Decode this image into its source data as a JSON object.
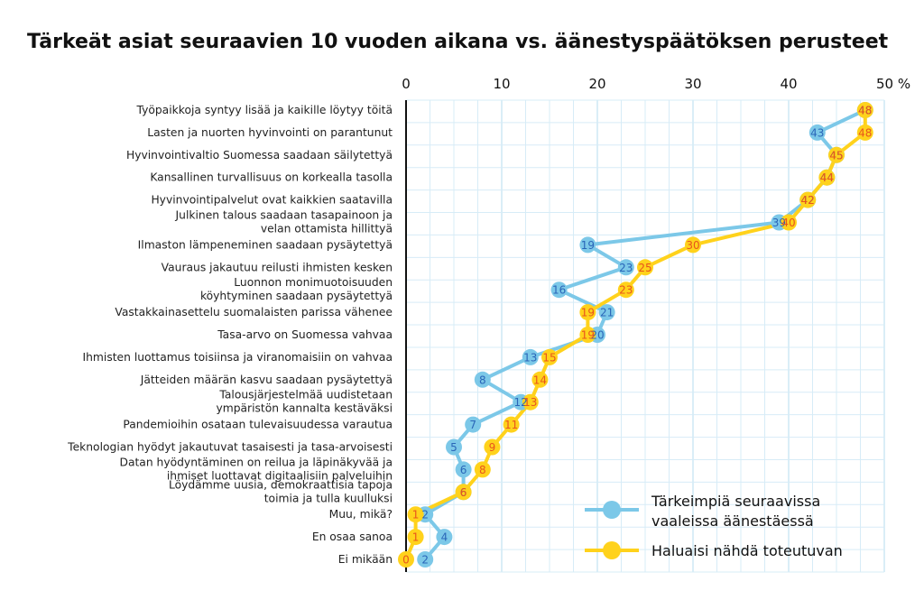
{
  "chart_data": {
    "type": "line",
    "title": "Tärkeät asiat seuraavien 10 vuoden aikana vs. äänestyspäätöksen perusteet",
    "x_unit_label": "%",
    "xlim": [
      0,
      50
    ],
    "x_ticks": [
      0,
      10,
      20,
      30,
      40,
      50
    ],
    "grid": true,
    "legend_placement": "bottom-right",
    "categories": [
      "Työpaikkoja syntyy lisää ja kaikille löytyy töitä",
      "Lasten ja nuorten hyvinvointi on parantunut",
      "Hyvinvointivaltio Suomessa saadaan säilytettyä",
      "Kansallinen turvallisuus on korkealla tasolla",
      "Hyvinvointipalvelut ovat kaikkien saatavilla",
      "Julkinen talous saadaan tasapainoon ja velan ottamista hillittyä",
      "Ilmaston lämpeneminen saadaan pysäytettyä",
      "Vauraus jakautuu reilusti ihmisten kesken",
      "Luonnon monimuotoisuuden köyhtyminen saadaan pysäytettyä",
      "Vastakkainasettelu suomalaisten parissa vähenee",
      "Tasa-arvo on Suomessa vahvaa",
      "Ihmisten luottamus toisiinsa ja viranomaisiin on vahvaa",
      "Jätteiden määrän kasvu saadaan pysäytettyä",
      "Talousjärjestelmää uudistetaan ympäristön kannalta kestäväksi",
      "Pandemioihin osataan tulevaisuudessa varautua",
      "Teknologian hyödyt jakautuvat tasaisesti ja tasa-arvoisesti",
      "Datan hyödyntäminen on reilua ja läpinäkyvää ja ihmiset luottavat digitaalisiin palveluihin",
      "Löydämme uusia, demokraattisia tapoja toimia ja tulla kuulluksi",
      "Muu, mikä?",
      "En osaa sanoa",
      "Ei mikään"
    ],
    "category_lines": [
      [
        "Työpaikkoja syntyy lisää ja kaikille löytyy töitä"
      ],
      [
        "Lasten ja nuorten hyvinvointi on parantunut"
      ],
      [
        "Hyvinvointivaltio Suomessa saadaan säilytettyä"
      ],
      [
        "Kansallinen turvallisuus on korkealla tasolla"
      ],
      [
        "Hyvinvointipalvelut ovat kaikkien saatavilla"
      ],
      [
        "Julkinen talous saadaan tasapainoon ja",
        "velan ottamista hillittyä"
      ],
      [
        "Ilmaston lämpeneminen saadaan pysäytettyä"
      ],
      [
        "Vauraus jakautuu reilusti ihmisten kesken"
      ],
      [
        "Luonnon monimuotoisuuden",
        "köyhtyminen saadaan pysäytettyä"
      ],
      [
        "Vastakkainasettelu suomalaisten parissa vähenee"
      ],
      [
        "Tasa-arvo on Suomessa vahvaa"
      ],
      [
        "Ihmisten luottamus toisiinsa ja viranomaisiin on vahvaa"
      ],
      [
        "Jätteiden määrän kasvu saadaan pysäytettyä"
      ],
      [
        "Talousjärjestelmää uudistetaan",
        "ympäristön kannalta kestäväksi"
      ],
      [
        "Pandemioihin osataan tulevaisuudessa varautua"
      ],
      [
        "Teknologian hyödyt jakautuvat tasaisesti ja tasa-arvoisesti"
      ],
      [
        "Datan hyödyntäminen on reilua ja läpinäkyvää ja",
        "ihmiset luottavat digitaalisiin palveluihin"
      ],
      [
        "Löydämme uusia, demokraattisia tapoja",
        "toimia ja tulla kuulluksi"
      ],
      [
        "Muu, mikä?"
      ],
      [
        "En osaa sanoa"
      ],
      [
        "Ei mikään"
      ]
    ],
    "series": [
      {
        "name": "Tärkeimpiä seuraavissa vaaleissa äänestäessä",
        "legend_lines": [
          "Tärkeimpiä seuraavissa",
          "vaaleissa äänestäessä"
        ],
        "color": "#7cc8e8",
        "label_color": "#2a66b8",
        "values": [
          48,
          43,
          45,
          44,
          42,
          39,
          19,
          23,
          16,
          21,
          20,
          13,
          8,
          12,
          7,
          5,
          6,
          6,
          2,
          4,
          2
        ]
      },
      {
        "name": "Haluaisi nähdä toteutuvan",
        "legend_lines": [
          "Haluaisi nähdä toteutuvan"
        ],
        "color": "#ffd21c",
        "label_color": "#e8551c",
        "values": [
          48,
          48,
          45,
          44,
          42,
          40,
          30,
          25,
          23,
          19,
          19,
          15,
          14,
          13,
          11,
          9,
          8,
          6,
          1,
          1,
          0
        ]
      }
    ]
  }
}
